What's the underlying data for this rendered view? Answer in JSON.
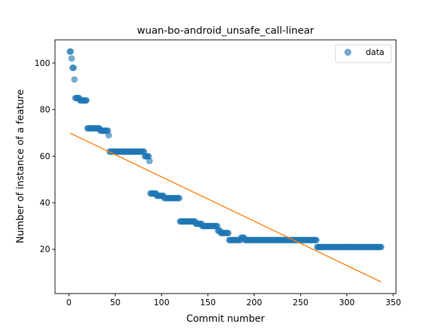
{
  "chart_data": {
    "type": "scatter",
    "title": "wuan-bo-android_unsafe_call-linear",
    "xlabel": "Commit number",
    "ylabel": "Number of instance of a feature",
    "xlim": [
      -15,
      353
    ],
    "ylim": [
      1,
      110
    ],
    "xticks": [
      0,
      50,
      100,
      150,
      200,
      250,
      300,
      350
    ],
    "yticks": [
      20,
      40,
      60,
      80,
      100
    ],
    "legend": {
      "position": "top-right",
      "entries": [
        "data"
      ]
    },
    "colors": {
      "data": "#1f77b4",
      "fit": "#ff7f0e"
    },
    "segments": [
      {
        "x_start": 1,
        "x_end": 2,
        "y": 105
      },
      {
        "x_start": 3,
        "x_end": 3,
        "y": 102
      },
      {
        "x_start": 4,
        "x_end": 5,
        "y": 98
      },
      {
        "x_start": 6,
        "x_end": 6,
        "y": 93
      },
      {
        "x_start": 7,
        "x_end": 11,
        "y": 85
      },
      {
        "x_start": 12,
        "x_end": 19,
        "y": 84
      },
      {
        "x_start": 20,
        "x_end": 33,
        "y": 72
      },
      {
        "x_start": 34,
        "x_end": 42,
        "y": 71
      },
      {
        "x_start": 43,
        "x_end": 43,
        "y": 69
      },
      {
        "x_start": 44,
        "x_end": 81,
        "y": 62
      },
      {
        "x_start": 82,
        "x_end": 86,
        "y": 60
      },
      {
        "x_start": 87,
        "x_end": 87,
        "y": 58
      },
      {
        "x_start": 88,
        "x_end": 94,
        "y": 44
      },
      {
        "x_start": 95,
        "x_end": 102,
        "y": 43
      },
      {
        "x_start": 103,
        "x_end": 119,
        "y": 42
      },
      {
        "x_start": 120,
        "x_end": 136,
        "y": 32
      },
      {
        "x_start": 137,
        "x_end": 143,
        "y": 31
      },
      {
        "x_start": 144,
        "x_end": 160,
        "y": 30
      },
      {
        "x_start": 161,
        "x_end": 163,
        "y": 28
      },
      {
        "x_start": 164,
        "x_end": 172,
        "y": 27
      },
      {
        "x_start": 173,
        "x_end": 185,
        "y": 24
      },
      {
        "x_start": 186,
        "x_end": 189,
        "y": 25
      },
      {
        "x_start": 190,
        "x_end": 267,
        "y": 24
      },
      {
        "x_start": 268,
        "x_end": 337,
        "y": 21
      }
    ],
    "fit_line": {
      "x": [
        1,
        337
      ],
      "y": [
        70,
        6
      ]
    }
  }
}
